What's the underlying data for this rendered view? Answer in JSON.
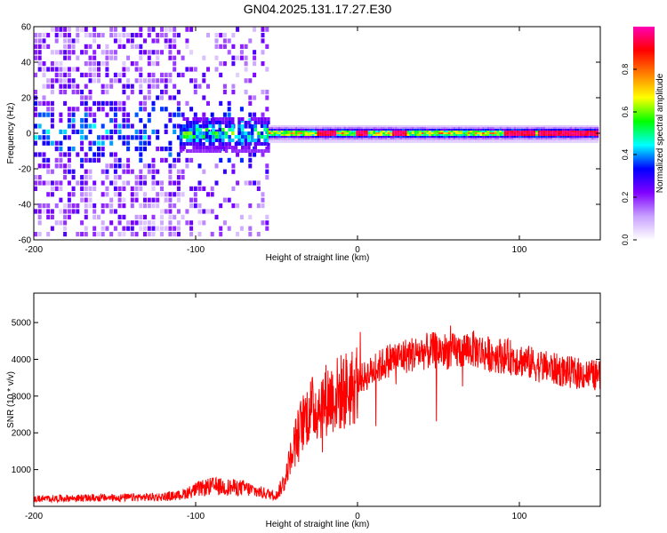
{
  "title": "GN04.2025.131.17.27.E30",
  "chart_data": [
    {
      "type": "heatmap",
      "xlabel": "Height of straight line (km)",
      "ylabel": "Frequency (Hz)",
      "xlim": [
        -200,
        150
      ],
      "ylim": [
        -60,
        60
      ],
      "xticks": [
        "-200",
        "-100",
        "0",
        "100"
      ],
      "yticks": [
        "-60",
        "-40",
        "-20",
        "0",
        "20",
        "40",
        "60"
      ],
      "colorbar": {
        "label": "Normalized spectral amplitude",
        "range": [
          0,
          1
        ],
        "ticks": [
          "0.0",
          "0.2",
          "0.4",
          "0.6",
          "0.8"
        ],
        "colors": [
          "#ffffff",
          "#c8a0ff",
          "#7f00ff",
          "#0000ff",
          "#00ffff",
          "#00ff00",
          "#ffff00",
          "#ff8000",
          "#ff0000",
          "#ff00b4"
        ]
      },
      "regions": [
        {
          "x": [
            -200,
            -110
          ],
          "description_values": {
            "freq_center": 0,
            "freq_spread": 60,
            "amplitude": 0.15
          }
        },
        {
          "x": [
            -110,
            -55
          ],
          "description_values": {
            "freq_center": 0,
            "freq_spread": 8,
            "amplitude": 0.35
          }
        },
        {
          "x": [
            -55,
            150
          ],
          "description_values": {
            "freq_center": 0,
            "freq_spread": 3,
            "amplitude": 0.75
          }
        }
      ]
    },
    {
      "type": "line",
      "xlabel": "Height of straight line (km)",
      "ylabel": "SNR (10 * v/v)",
      "xlim": [
        -200,
        150
      ],
      "ylim": [
        0,
        5800
      ],
      "xticks": [
        "-200",
        "-100",
        "0",
        "100"
      ],
      "yticks": [
        "1000",
        "2000",
        "3000",
        "4000",
        "5000"
      ],
      "series": [
        {
          "color": "#ff0000",
          "x": [
            -200,
            -180,
            -160,
            -140,
            -120,
            -110,
            -100,
            -90,
            -80,
            -70,
            -60,
            -50,
            -45,
            -40,
            -35,
            -30,
            -25,
            -20,
            -15,
            -10,
            -5,
            0,
            10,
            20,
            30,
            40,
            50,
            60,
            70,
            80,
            90,
            100,
            110,
            120,
            130,
            140,
            150
          ],
          "values": [
            200,
            220,
            230,
            240,
            260,
            300,
            450,
            550,
            520,
            500,
            380,
            300,
            700,
            1600,
            2200,
            2600,
            2700,
            2900,
            3000,
            3100,
            3200,
            3400,
            3700,
            4000,
            4100,
            4200,
            4250,
            4200,
            4300,
            4150,
            4100,
            4000,
            3850,
            3750,
            3650,
            3600,
            3550
          ]
        }
      ]
    }
  ]
}
